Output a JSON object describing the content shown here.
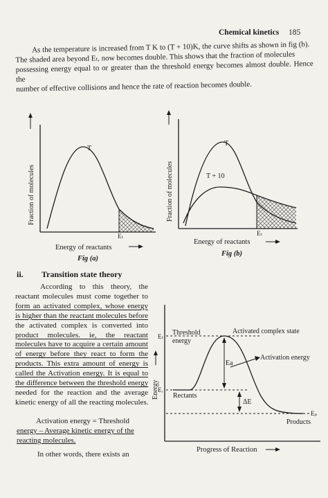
{
  "header": {
    "chapter": "Chemical kinetics",
    "page": "185"
  },
  "intro_lines": [
    "As the temperature is increased from T K to (T + 10)K, the curve shifts as shown in fig (b).",
    "The shaded area beyond Eₜ, now becomes double. This shows that the fraction of molecules",
    "possessing energy equal to or greater than the threshold energy becomes almost double. Hence the",
    "number of effective collisions and hence the rate of reaction becomes double."
  ],
  "fig_a": {
    "ylabel": "Fraction of molecules",
    "xlabel": "Energy of reactants",
    "curve_label": "T",
    "threshold_label": "Eₜ",
    "caption": "Fig (a)"
  },
  "fig_b": {
    "ylabel": "Fraction of molecules",
    "xlabel": "Energy of reactants",
    "curve_label_1": "T",
    "curve_label_2": "T + 10",
    "threshold_label": "Eₜ",
    "caption": "Fig (b)"
  },
  "section": {
    "number": "ii.",
    "title": "Transition state theory"
  },
  "tst_lines": [
    "According to this theory, the",
    "reactant molecules must come together to",
    "form an activated complex, whose energy",
    "is higher than the reactant molecules before",
    "the activated complex is converted into",
    "product molecules. ie, the reactant",
    "molecules have to acquire a certain amount",
    "of energy before they react to form the",
    "products. This extra amount of energy is",
    "called the Activation energy. It is equal to",
    "the difference between the threshold energy",
    "needed for the reaction and the average",
    "kinetic energy of all the reacting molecules."
  ],
  "equation_lines": [
    "Activation energy = Threshold",
    "energy – Average kinetic energy of the",
    "reacting molecules."
  ],
  "last_line": "In other words, there exists an",
  "energy_diagram": {
    "ylabel": "Energy",
    "xlabel": "Progress of Reaction",
    "threshold_label_1": "Threshold",
    "threshold_label_2": "energy",
    "et_label": "Eₜ",
    "er_label": "Eᵣ",
    "ep_label": "Eₚ",
    "complex_label": "Activated complex state",
    "activation_label": "Activation energy",
    "ea_label": "Ea",
    "reactants_label": "Rectants",
    "delta_label": "ΔE",
    "products_label": "Products"
  }
}
